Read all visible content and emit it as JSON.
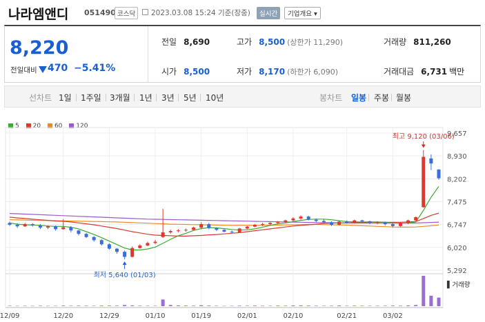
{
  "header": {
    "name": "나라엠앤디",
    "code": "051490",
    "market": "코스닥",
    "datetime": "2023.03.08 15:24 기준(장중)",
    "realtime": "실시간",
    "company_info": "기업개요"
  },
  "quote": {
    "price": "8,220",
    "diff_label": "전일대비",
    "diff_value": "470",
    "diff_rate": "−5.41%",
    "prev_label": "전일",
    "prev": "8,690",
    "open_label": "시가",
    "open": "8,500",
    "high_label": "고가",
    "high": "8,500",
    "upper_limit": "(상한가 11,290)",
    "low_label": "저가",
    "low": "8,170",
    "lower_limit": "(하한가 6,090)",
    "volume_label": "거래량",
    "volume": "811,260",
    "amount_label": "거래대금",
    "amount": "6,731",
    "amount_unit": "백만"
  },
  "tabs": {
    "line_label": "선차트",
    "periods": [
      "1일",
      "1주일",
      "3개월",
      "1년",
      "3년",
      "5년",
      "10년"
    ],
    "candle_label": "봉차트",
    "candles": [
      "일봉",
      "주봉",
      "월봉"
    ],
    "active_candle": "일봉"
  },
  "colors": {
    "up": "#e0362c",
    "down": "#3a6fd8",
    "ma5": "#3ea832",
    "ma20": "#d83a2e",
    "ma60": "#f08a1c",
    "ma120": "#9a5ac8"
  },
  "chart_data": {
    "type": "candlestick",
    "legend": [
      "5",
      "20",
      "60",
      "120"
    ],
    "y_ticks": [
      "9,657",
      "8,930",
      "8,202",
      "7,475",
      "6,747",
      "6,020",
      "5,292"
    ],
    "ylim": [
      5292,
      9657
    ],
    "x_ticks": [
      "12/09",
      "12/20",
      "12/29",
      "01/10",
      "01/19",
      "02/01",
      "02/10",
      "02/21",
      "03/02"
    ],
    "x_tick_index": [
      0,
      7,
      13,
      19,
      25,
      31,
      37,
      44,
      50
    ],
    "annotation_high": "최고 9,120 (03/06)",
    "annotation_low": "최저 5,640 (01/03)",
    "volume_label": "거래량",
    "candles": [
      [
        6800,
        6840,
        6700,
        6740
      ],
      [
        6740,
        6790,
        6640,
        6690
      ],
      [
        6690,
        6800,
        6670,
        6760
      ],
      [
        6760,
        6790,
        6680,
        6720
      ],
      [
        6720,
        6760,
        6600,
        6650
      ],
      [
        6650,
        6720,
        6600,
        6690
      ],
      [
        6690,
        6720,
        6550,
        6600
      ],
      [
        6600,
        6920,
        6580,
        6660
      ],
      [
        6660,
        6700,
        6500,
        6560
      ],
      [
        6560,
        6580,
        6400,
        6450
      ],
      [
        6450,
        6480,
        6320,
        6350
      ],
      [
        6350,
        6380,
        6200,
        6250
      ],
      [
        6250,
        6280,
        6080,
        6120
      ],
      [
        6120,
        6150,
        5950,
        5980
      ],
      [
        5980,
        6000,
        5820,
        5880
      ],
      [
        5880,
        5920,
        5640,
        5720
      ],
      [
        5720,
        6050,
        5700,
        6000
      ],
      [
        6000,
        6120,
        5980,
        6080
      ],
      [
        6080,
        6200,
        6060,
        6160
      ],
      [
        6160,
        6260,
        6120,
        6200
      ],
      [
        6350,
        7250,
        6320,
        6500
      ],
      [
        6500,
        6580,
        6450,
        6540
      ],
      [
        6540,
        6600,
        6500,
        6560
      ],
      [
        6560,
        6620,
        6520,
        6580
      ],
      [
        6580,
        6680,
        6560,
        6650
      ],
      [
        6650,
        6820,
        6600,
        6760
      ],
      [
        6760,
        6800,
        6600,
        6640
      ],
      [
        6640,
        6660,
        6540,
        6580
      ],
      [
        6580,
        6600,
        6500,
        6520
      ],
      [
        6520,
        6560,
        6460,
        6500
      ],
      [
        6500,
        6640,
        6480,
        6620
      ],
      [
        6620,
        6700,
        6600,
        6680
      ],
      [
        6680,
        6760,
        6660,
        6740
      ],
      [
        6740,
        6800,
        6700,
        6760
      ],
      [
        6760,
        6820,
        6720,
        6800
      ],
      [
        6800,
        6860,
        6760,
        6830
      ],
      [
        6830,
        6900,
        6790,
        6880
      ],
      [
        6880,
        6980,
        6840,
        6940
      ],
      [
        6940,
        7040,
        6900,
        7000
      ],
      [
        7000,
        7030,
        6880,
        6900
      ],
      [
        6900,
        6940,
        6820,
        6860
      ],
      [
        6860,
        6920,
        6780,
        6820
      ],
      [
        6820,
        6850,
        6700,
        6740
      ],
      [
        6740,
        6880,
        6720,
        6840
      ],
      [
        6840,
        6880,
        6780,
        6800
      ],
      [
        6800,
        6900,
        6780,
        6880
      ],
      [
        6880,
        6900,
        6820,
        6850
      ],
      [
        6850,
        6870,
        6760,
        6800
      ],
      [
        6800,
        6850,
        6760,
        6820
      ],
      [
        6820,
        6840,
        6720,
        6760
      ],
      [
        6760,
        6820,
        6660,
        6700
      ],
      [
        6700,
        6820,
        6680,
        6800
      ],
      [
        6800,
        6900,
        6760,
        6880
      ],
      [
        6880,
        7000,
        6860,
        6980
      ],
      [
        7300,
        9120,
        7280,
        8900
      ],
      [
        8850,
        8980,
        8480,
        8690
      ],
      [
        8500,
        8500,
        8170,
        8220
      ]
    ],
    "volume": [
      40,
      30,
      35,
      30,
      45,
      30,
      35,
      60,
      40,
      50,
      45,
      40,
      55,
      60,
      50,
      120,
      80,
      50,
      40,
      35,
      700,
      120,
      80,
      60,
      50,
      90,
      60,
      40,
      30,
      35,
      50,
      45,
      60,
      40,
      40,
      55,
      50,
      70,
      80,
      60,
      50,
      40,
      45,
      70,
      40,
      55,
      45,
      40,
      40,
      45,
      60,
      50,
      70,
      120,
      3200,
      1100,
      900
    ],
    "ma5": [
      6800,
      6760,
      6740,
      6730,
      6720,
      6700,
      6690,
      6690,
      6660,
      6610,
      6520,
      6430,
      6330,
      6220,
      6110,
      6000,
      5940,
      5940,
      5970,
      6030,
      6150,
      6280,
      6390,
      6470,
      6560,
      6620,
      6650,
      6640,
      6620,
      6590,
      6570,
      6580,
      6610,
      6660,
      6720,
      6770,
      6800,
      6840,
      6880,
      6910,
      6920,
      6920,
      6900,
      6870,
      6840,
      6830,
      6830,
      6830,
      6830,
      6820,
      6800,
      6790,
      6800,
      6830,
      7200,
      7620,
      7960
    ],
    "ma20": [
      6980,
      6960,
      6940,
      6920,
      6900,
      6880,
      6860,
      6850,
      6830,
      6800,
      6770,
      6740,
      6700,
      6660,
      6620,
      6570,
      6520,
      6480,
      6440,
      6410,
      6400,
      6390,
      6380,
      6380,
      6390,
      6400,
      6420,
      6430,
      6450,
      6470,
      6490,
      6520,
      6550,
      6580,
      6610,
      6640,
      6670,
      6700,
      6720,
      6740,
      6760,
      6780,
      6790,
      6800,
      6800,
      6810,
      6810,
      6820,
      6820,
      6820,
      6820,
      6820,
      6830,
      6840,
      6940,
      7040,
      7110
    ],
    "ma60": [
      6900,
      6895,
      6890,
      6885,
      6880,
      6875,
      6870,
      6865,
      6860,
      6855,
      6850,
      6845,
      6840,
      6835,
      6830,
      6820,
      6810,
      6800,
      6790,
      6780,
      6770,
      6760,
      6755,
      6750,
      6745,
      6740,
      6735,
      6730,
      6725,
      6720,
      6720,
      6720,
      6720,
      6720,
      6725,
      6730,
      6735,
      6740,
      6745,
      6750,
      6750,
      6745,
      6740,
      6735,
      6730,
      6720,
      6710,
      6700,
      6690,
      6680,
      6670,
      6665,
      6665,
      6670,
      6690,
      6710,
      6730
    ],
    "ma120": [
      7100,
      7090,
      7080,
      7070,
      7060,
      7050,
      7040,
      7030,
      7020,
      7010,
      7000,
      6990,
      6980,
      6970,
      6960,
      6950,
      6940,
      6930,
      6920,
      6915,
      6910,
      6905,
      6900,
      6895,
      6890,
      6885,
      6880,
      6875,
      6870,
      6865,
      6860,
      6855,
      6850,
      6845,
      6840,
      6835,
      6830,
      6825,
      6820,
      6815,
      6810,
      6810,
      6805,
      6800,
      6800,
      6795,
      6795,
      6790,
      6790,
      6790,
      6790,
      6790,
      6790,
      6795,
      6805,
      6815,
      6825
    ]
  }
}
